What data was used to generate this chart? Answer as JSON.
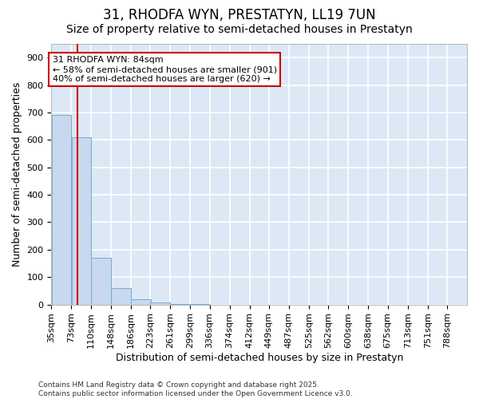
{
  "title": "31, RHODFA WYN, PRESTATYN, LL19 7UN",
  "subtitle": "Size of property relative to semi-detached houses in Prestatyn",
  "xlabel": "Distribution of semi-detached houses by size in Prestatyn",
  "ylabel": "Number of semi-detached properties",
  "bar_color": "#c8d8ee",
  "bar_edge_color": "#7aaad0",
  "background_color": "#dce8f5",
  "grid_color": "#ffffff",
  "bin_edges": [
    35,
    73,
    110,
    148,
    186,
    223,
    261,
    299,
    336,
    374,
    412,
    449,
    487,
    525,
    562,
    600,
    638,
    675,
    713,
    751,
    788
  ],
  "bar_heights": [
    690,
    610,
    170,
    60,
    18,
    8,
    2,
    1,
    0,
    0,
    0,
    0,
    0,
    0,
    0,
    0,
    0,
    0,
    0,
    0
  ],
  "property_size": 84,
  "red_line_color": "#cc0000",
  "annotation_line1": "31 RHODFA WYN: 84sqm",
  "annotation_line2": "← 58% of semi-detached houses are smaller (901)",
  "annotation_line3": "40% of semi-detached houses are larger (620) →",
  "annotation_box_color": "#ffffff",
  "annotation_box_edge_color": "#cc0000",
  "ylim": [
    0,
    950
  ],
  "yticks": [
    0,
    100,
    200,
    300,
    400,
    500,
    600,
    700,
    800,
    900
  ],
  "footnote": "Contains HM Land Registry data © Crown copyright and database right 2025.\nContains public sector information licensed under the Open Government Licence v3.0.",
  "title_fontsize": 12,
  "subtitle_fontsize": 10,
  "tick_label_fontsize": 8,
  "ylabel_fontsize": 9,
  "xlabel_fontsize": 9,
  "annotation_fontsize": 8
}
